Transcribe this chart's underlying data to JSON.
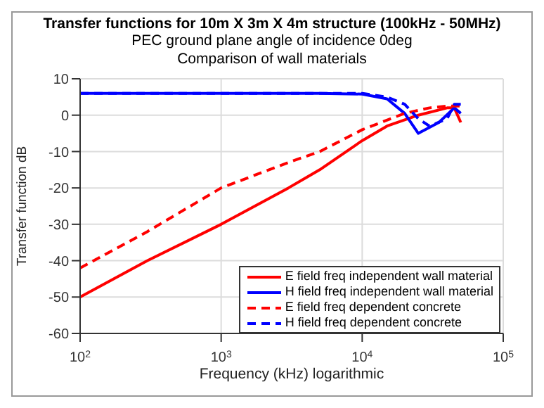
{
  "chart_data": {
    "type": "line",
    "title": "Transfer functions for 10m X 3m X 4m structure (100kHz - 50MHz)",
    "subtitle": "PEC ground plane angle of incidence 0deg\nComparison of wall materials",
    "xlabel": "Frequency (kHz) logarithmic",
    "ylabel": "Transfer function dB",
    "log": "x",
    "xlim": [
      100,
      100000
    ],
    "xticks": [
      {
        "value": 100,
        "label": "10$^{2}$"
      },
      {
        "value": 1000,
        "label": "10$^{3}$"
      },
      {
        "value": 10000,
        "label": "10$^{4}$"
      },
      {
        "value": 100000,
        "label": "10$^{5}$"
      }
    ],
    "ylim": [
      -60,
      10
    ],
    "yticks": [
      -60,
      -50,
      -40,
      -30,
      -20,
      -10,
      0,
      10
    ],
    "grid": true,
    "legend": "bottom right",
    "marker": "none",
    "series": [
      {
        "name": "E field freq independent wall material",
        "color": "#ff0000",
        "line_style": "solid",
        "x": [
          100,
          300,
          1000,
          3000,
          5000,
          10000,
          15000,
          25000,
          40000,
          45000,
          50000
        ],
        "values": [
          -50,
          -40,
          -30,
          -20,
          -15,
          -7,
          -3,
          0,
          2,
          2,
          -2
        ]
      },
      {
        "name": "H field freq independent wall material",
        "color": "#0000ff",
        "line_style": "solid",
        "x": [
          100,
          1000,
          5000,
          10000,
          15000,
          20000,
          25000,
          35000,
          45000,
          50000
        ],
        "values": [
          6,
          6,
          6,
          5.8,
          4.5,
          0.5,
          -5,
          -2,
          2,
          0.5
        ]
      },
      {
        "name": "E field freq dependent concrete",
        "color": "#ff0000",
        "line_style": "dashed",
        "x": [
          100,
          300,
          1000,
          3000,
          5000,
          10000,
          20000,
          30000,
          40000,
          50000
        ],
        "values": [
          -42,
          -32,
          -20,
          -13,
          -10,
          -4,
          0.5,
          2,
          2.5,
          2.5
        ]
      },
      {
        "name": "H field freq dependent concrete",
        "color": "#0000ff",
        "line_style": "dashed",
        "x": [
          100,
          1000,
          5000,
          10000,
          15000,
          20000,
          25000,
          30000,
          40000,
          45000,
          50000
        ],
        "values": [
          6,
          6,
          6,
          6,
          5,
          3,
          -1,
          -3,
          -1,
          3,
          3
        ]
      }
    ]
  }
}
